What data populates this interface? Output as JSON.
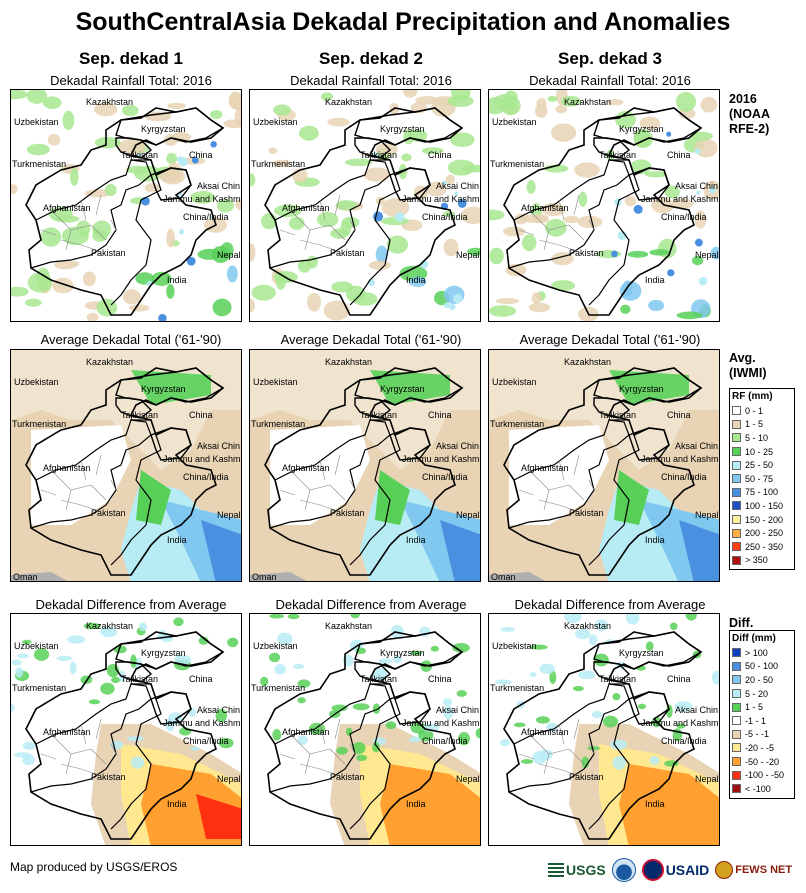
{
  "title": "SouthCentralAsia Dekadal Precipitation and Anomalies",
  "columns": [
    "Sep. dekad 1",
    "Sep. dekad 2",
    "Sep. dekad 3"
  ],
  "row_titles": {
    "current": "Dekadal Rainfall Total: 2016",
    "average": "Average Dekadal Total ('61-'90)",
    "difference": "Dekadal Difference from Average"
  },
  "side_labels": {
    "current": [
      "2016",
      "(NOAA",
      "RFE-2)"
    ],
    "average": [
      "Avg.",
      "(IWMI)"
    ],
    "difference": [
      "Diff."
    ]
  },
  "map_labels": {
    "kazakhstan": "Kazakhstan",
    "uzbekistan": "Uzbekistan",
    "kyrgyzstan": "Kyrgyzstan",
    "tajikistan": "Tajikistan",
    "china": "China",
    "turkmenistan": "Turkmenistan",
    "aksai_chin": "Aksai Chin",
    "jammu_kashmir": "Jammu and Kashmir",
    "afghanistan": "Afghanistan",
    "china_india": "China/India",
    "pakistan": "Pakistan",
    "nepal": "Nepal",
    "india": "India",
    "oman": "Oman"
  },
  "legend_rf": {
    "title": "RF (mm)",
    "items": [
      {
        "label": "0 - 1",
        "color": "#ffffff"
      },
      {
        "label": "1 - 5",
        "color": "#e8d3b4"
      },
      {
        "label": "5 - 10",
        "color": "#a8e890"
      },
      {
        "label": "10 - 25",
        "color": "#58d058"
      },
      {
        "label": "25 - 50",
        "color": "#b8ecf4"
      },
      {
        "label": "50 - 75",
        "color": "#80c8f0"
      },
      {
        "label": "75 - 100",
        "color": "#4a90e0"
      },
      {
        "label": "100 - 150",
        "color": "#2050c8"
      },
      {
        "label": "150 - 200",
        "color": "#fff0a0"
      },
      {
        "label": "200 - 250",
        "color": "#ffb040"
      },
      {
        "label": "250 - 350",
        "color": "#ff4010"
      },
      {
        "label": "> 350",
        "color": "#b01010"
      }
    ]
  },
  "legend_diff": {
    "title": "Diff (mm)",
    "items": [
      {
        "label": "> 100",
        "color": "#1040c0"
      },
      {
        "label": "50 - 100",
        "color": "#4a90e0"
      },
      {
        "label": "20 - 50",
        "color": "#80c8f0"
      },
      {
        "label": "5 - 20",
        "color": "#b8ecf4"
      },
      {
        "label": "1 - 5",
        "color": "#58d058"
      },
      {
        "label": "-1 - 1",
        "color": "#ffffff"
      },
      {
        "label": "-5 - -1",
        "color": "#e8d3b4"
      },
      {
        "label": "-20 - -5",
        "color": "#ffe890"
      },
      {
        "label": "-50 - -20",
        "color": "#ffa030"
      },
      {
        "label": "-100 - -50",
        "color": "#ff3010"
      },
      {
        "label": "< -100",
        "color": "#a01010"
      }
    ]
  },
  "footer": "Map produced by USGS/EROS",
  "logos": {
    "usgs": "USGS",
    "usaid": "USAID",
    "fews": "FEWS NET"
  }
}
